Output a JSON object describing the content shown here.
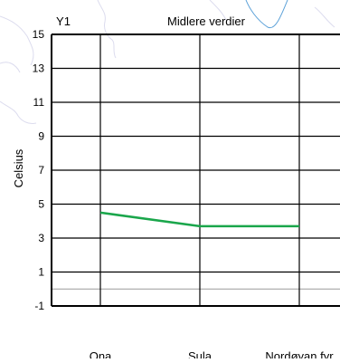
{
  "chart_data": {
    "type": "line",
    "title": "Midlere verdier",
    "axis_name": "Y1",
    "ylabel": "Celsius",
    "xlabel": "",
    "ylim": [
      -1,
      15
    ],
    "yticks": [
      -1,
      1,
      3,
      5,
      7,
      9,
      11,
      13,
      15
    ],
    "categories": [
      "Ona",
      "Sula",
      "Nordøyan fyr"
    ],
    "grid": true,
    "series": [
      {
        "name": "",
        "color": "#1aa64b",
        "values": [
          4.5,
          3.7,
          3.7
        ]
      }
    ],
    "colors": {
      "grid": "#000000",
      "zero_line": "#9a9a9a",
      "map_lines": "#d9d9ec",
      "map_water": "#5aa0d8"
    },
    "background": "faint map outline (coastline and county borders) behind the plot"
  }
}
